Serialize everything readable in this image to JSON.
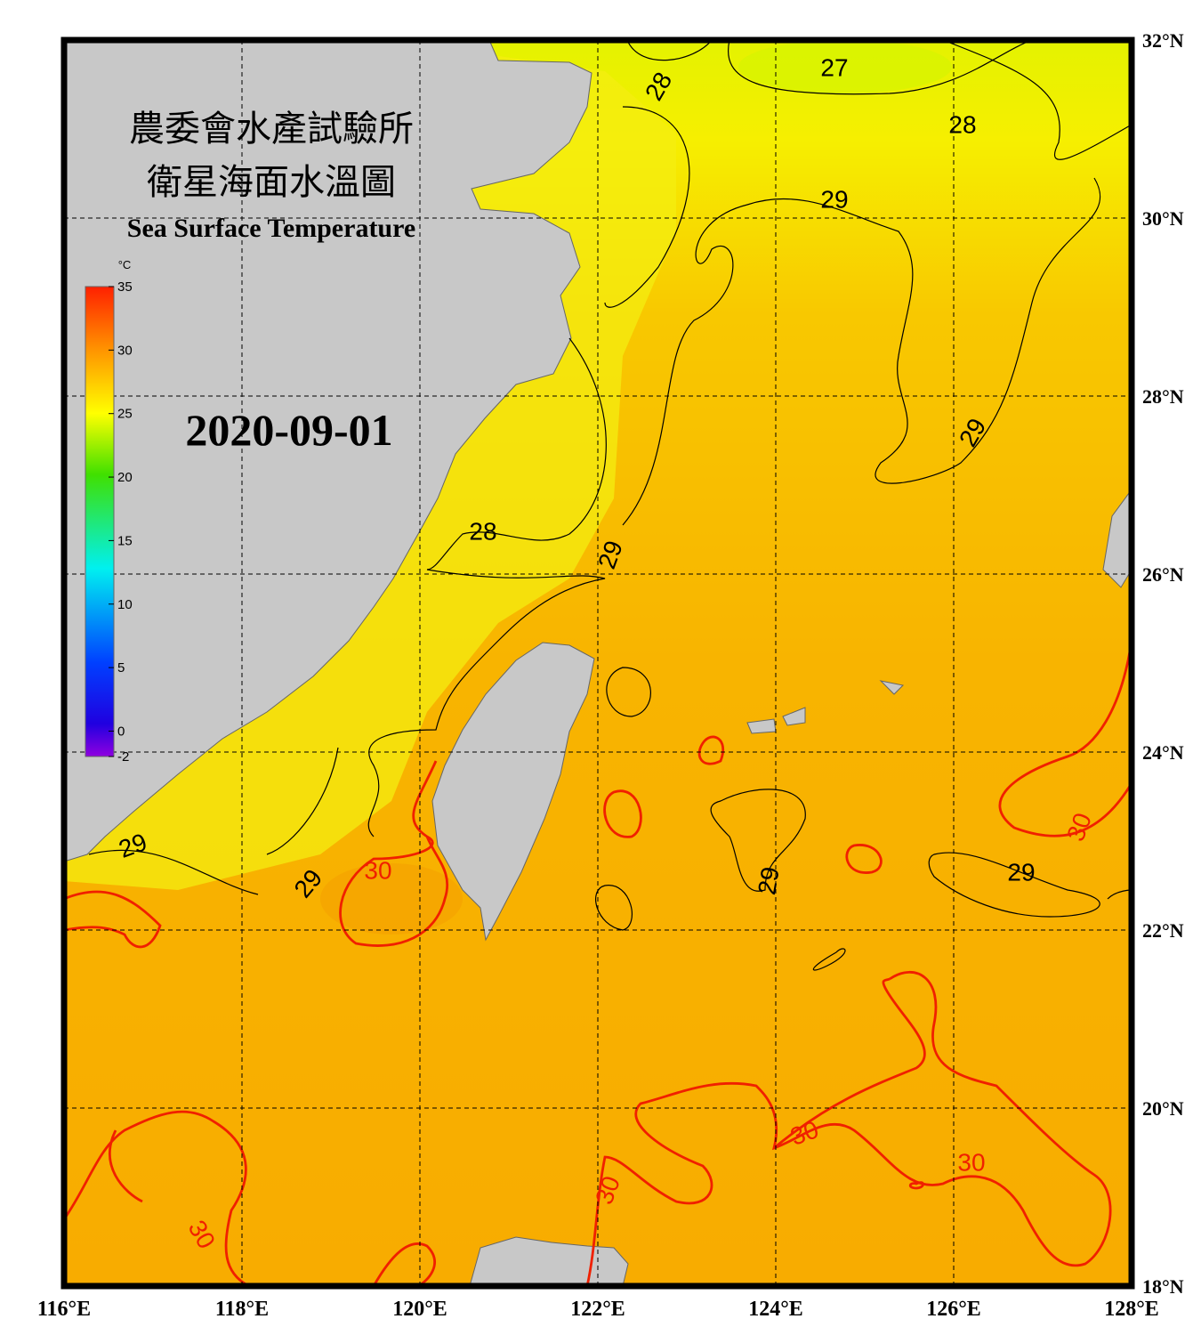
{
  "title": [
    "農委會水產試驗所",
    "衛星海面水溫圖"
  ],
  "subtitle": "Sea Surface Temperature",
  "date": "2020-09-01",
  "colorbar": {
    "unit": "°C",
    "range": [
      -2,
      35
    ],
    "ticks": [
      35,
      30,
      25,
      20,
      15,
      10,
      5,
      0,
      -2
    ]
  },
  "map": {
    "xlim": [
      116,
      128
    ],
    "ylim": [
      18,
      32
    ],
    "xticks": [
      {
        "value": 116,
        "label": "116°E"
      },
      {
        "value": 118,
        "label": "118°E"
      },
      {
        "value": 120,
        "label": "120°E"
      },
      {
        "value": 122,
        "label": "122°E"
      },
      {
        "value": 124,
        "label": "124°E"
      },
      {
        "value": 126,
        "label": "126°E"
      },
      {
        "value": 128,
        "label": "128°E"
      }
    ],
    "yticks": [
      {
        "value": 18,
        "label": "18°N"
      },
      {
        "value": 20,
        "label": "20°N"
      },
      {
        "value": 22,
        "label": "22°N"
      },
      {
        "value": 24,
        "label": "24°N"
      },
      {
        "value": 26,
        "label": "26°N"
      },
      {
        "value": 28,
        "label": "28°N"
      },
      {
        "value": 30,
        "label": "30°N"
      },
      {
        "value": 32,
        "label": "32°N"
      }
    ]
  },
  "contour_labels": [
    28,
    27,
    28,
    29,
    29,
    28,
    29,
    29,
    29,
    30,
    29,
    29,
    30,
    30,
    30,
    30,
    30
  ]
}
